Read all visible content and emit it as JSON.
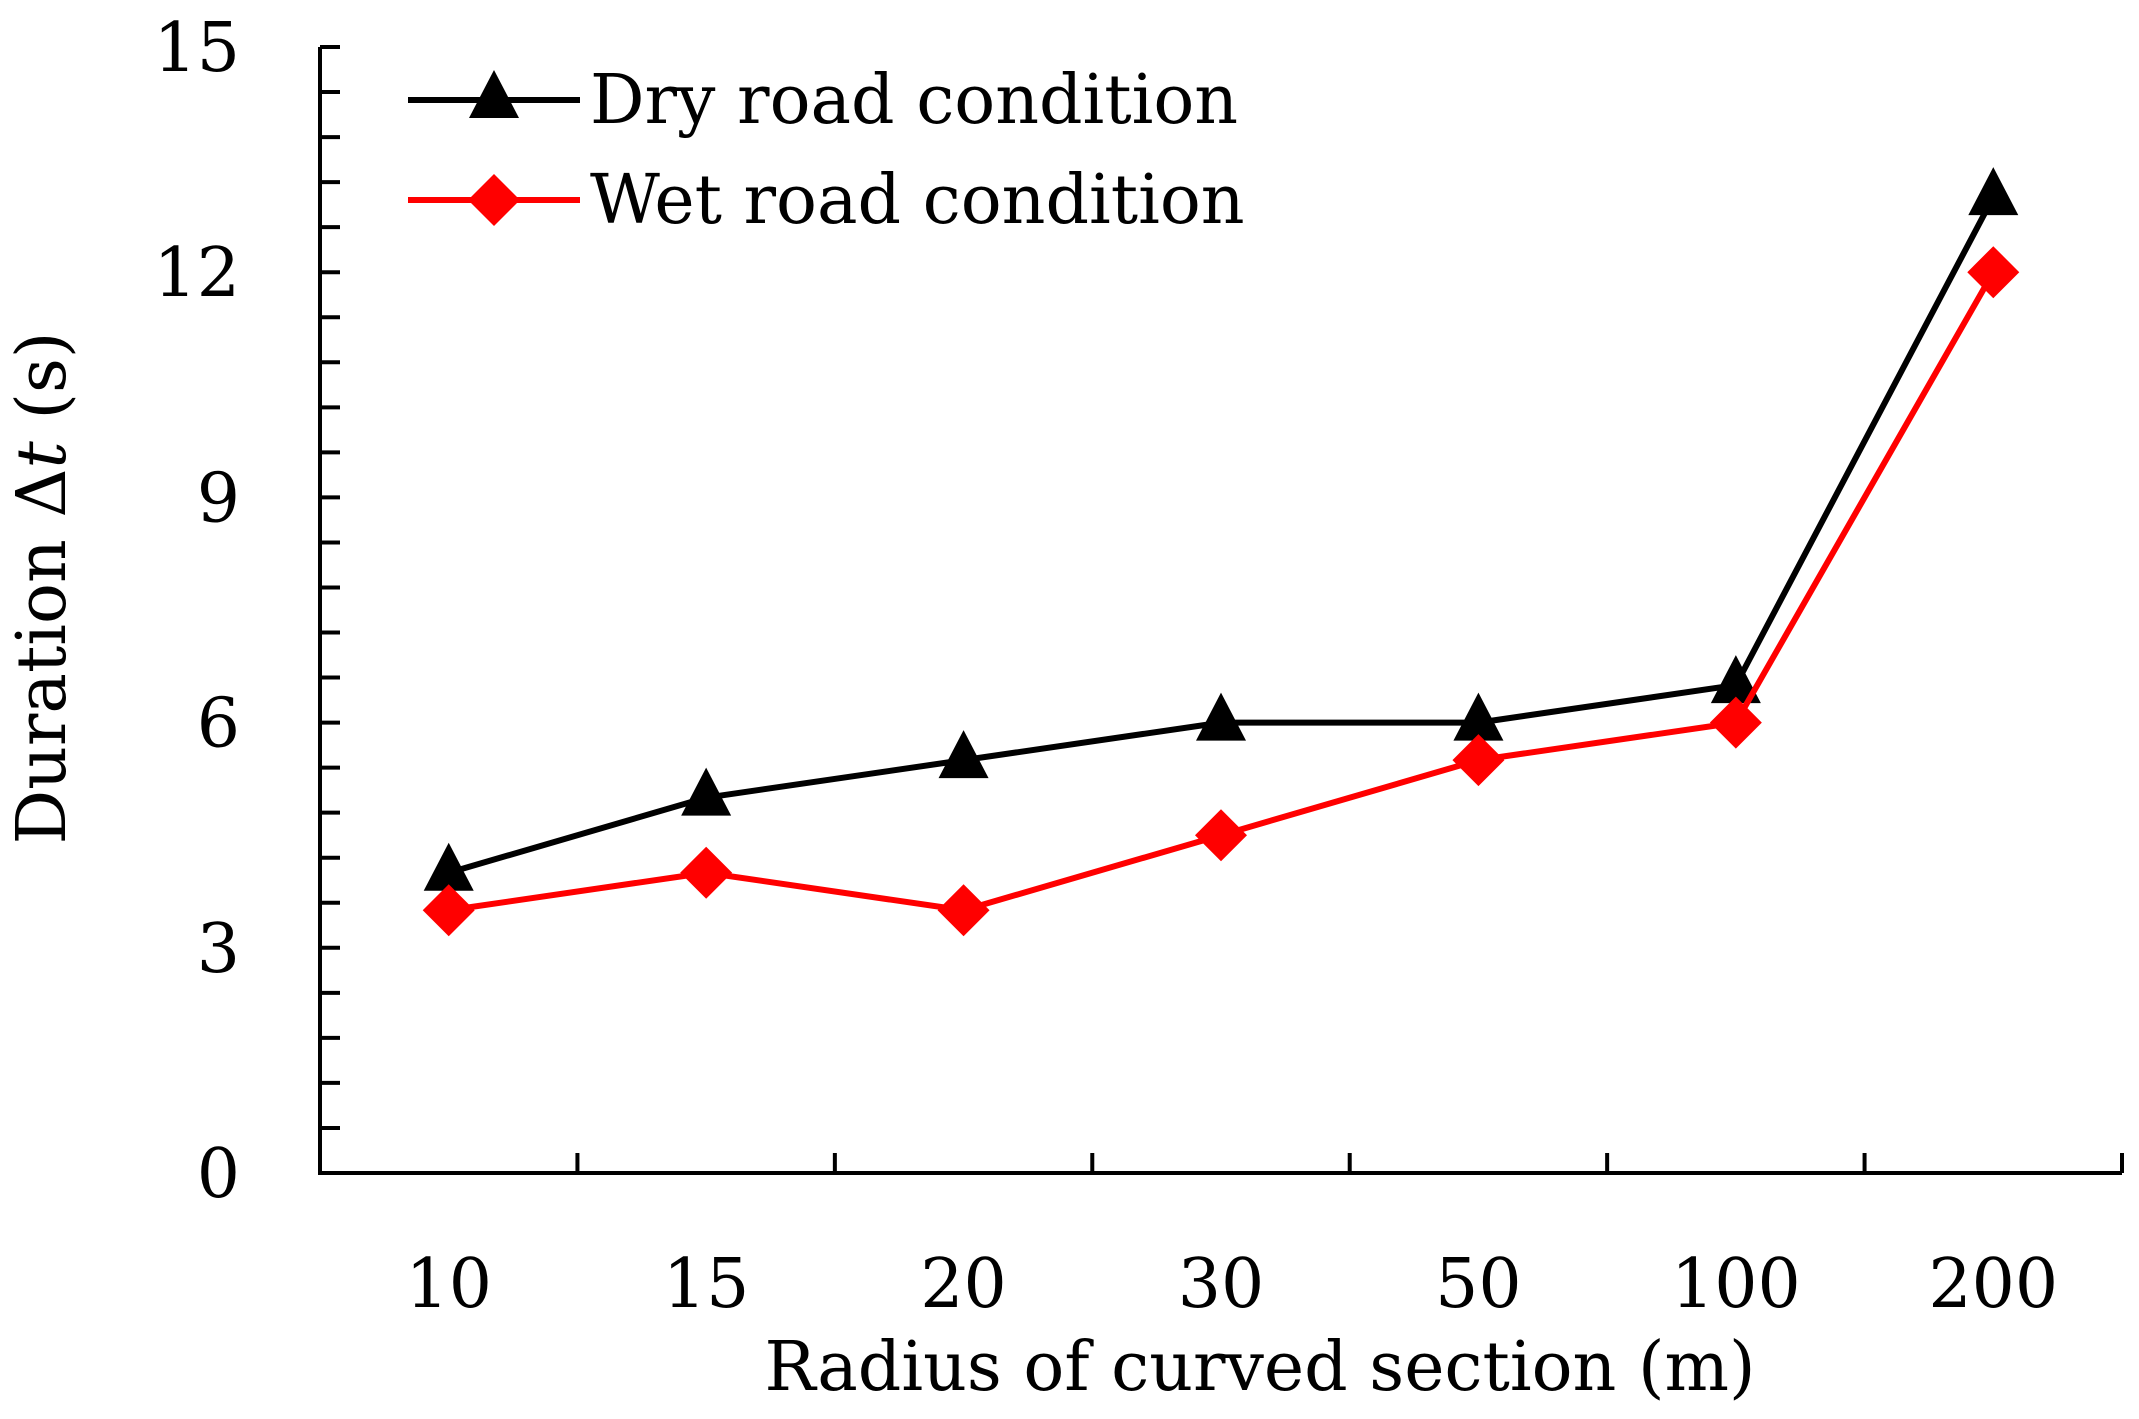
{
  "chart_data": {
    "type": "line",
    "title": "",
    "xlabel": "Radius of curved section (m)",
    "ylabel_parts": {
      "prefix": "Duration Δ",
      "variable": "t",
      "suffix": " (s)"
    },
    "categories": [
      "10",
      "15",
      "20",
      "30",
      "50",
      "100",
      "200"
    ],
    "yticks": [
      "0",
      "3",
      "6",
      "9",
      "12",
      "15"
    ],
    "ylim": [
      0,
      15
    ],
    "y_minor_step": 0.6,
    "grid": false,
    "legend_position": "top-left",
    "series": [
      {
        "name": "Dry road condition",
        "marker": "triangle",
        "color": "#000000",
        "values": [
          4,
          5,
          5.5,
          6,
          6,
          6.5,
          13
        ]
      },
      {
        "name": "Wet road condition",
        "marker": "diamond",
        "color": "#ff0000",
        "values": [
          3.5,
          4,
          3.5,
          4.5,
          5.5,
          6,
          12
        ]
      }
    ]
  }
}
